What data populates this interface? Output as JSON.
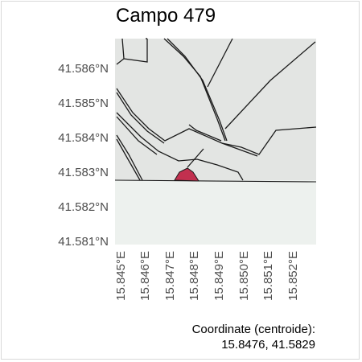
{
  "map": {
    "title": "Campo 479",
    "y_ticks": [
      "41.586°N",
      "41.585°N",
      "41.584°N",
      "41.583°N",
      "41.582°N",
      "41.581°N"
    ],
    "x_ticks": [
      "15.845°E",
      "15.846°E",
      "15.847°E",
      "15.848°E",
      "15.849°E",
      "15.850°E",
      "15.851°E",
      "15.852°E"
    ],
    "caption_line1": "Coordinate (centroide):",
    "caption_line2": "15.8476, 41.5829",
    "colors": {
      "land": "#e3e5e3",
      "lower_area": "#edf1ee",
      "roads": "#1a1a1a",
      "highlight": "#c2304f"
    }
  }
}
